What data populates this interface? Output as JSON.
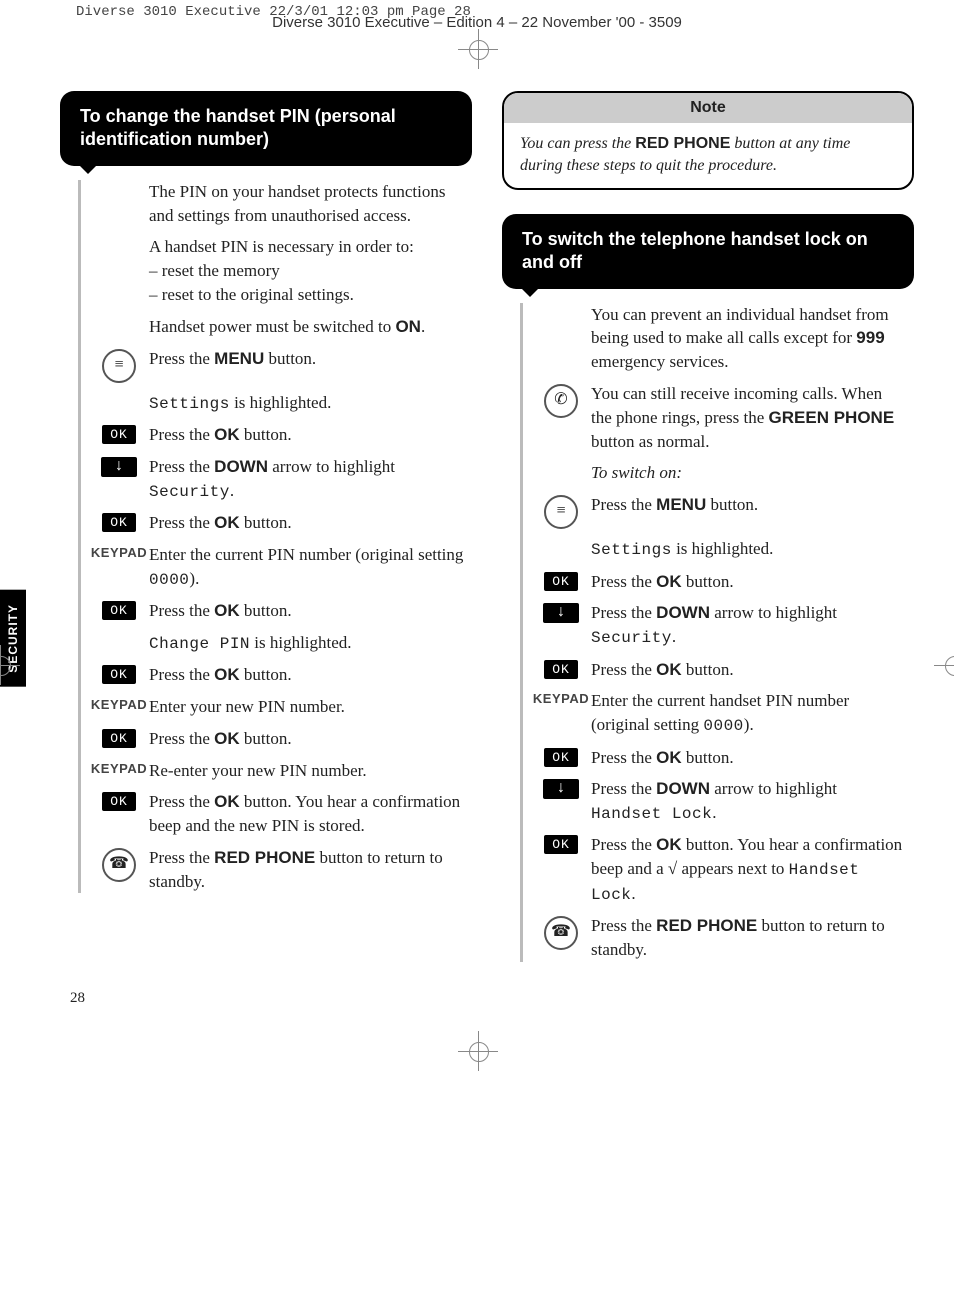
{
  "printHeader": "Diverse 3010 Executive  22/3/01  12:03 pm  Page 28",
  "docHeader": "Diverse 3010 Executive – Edition 4 – 22 November '00 - 3509",
  "sideTab": "SECURITY",
  "pageNumber": "28",
  "left": {
    "title": "To change the handset PIN (personal identification number)",
    "steps": [
      {
        "icon": "none",
        "html": "The PIN on your handset protects functions and settings from unauthorised access."
      },
      {
        "icon": "none",
        "html": "A handset PIN is necessary in order to:<br>– reset the memory<br>– reset to the original settings."
      },
      {
        "icon": "none",
        "html": "Handset power must be switched to <span class='bold'>ON</span>."
      },
      {
        "icon": "menu",
        "html": "Press the <span class='bold'>MENU</span> button."
      },
      {
        "icon": "none",
        "html": "<span class='mono'>Settings</span> is highlighted."
      },
      {
        "icon": "ok",
        "html": "Press the <span class='bold'>OK</span> button."
      },
      {
        "icon": "down",
        "html": "Press the <span class='bold'>DOWN</span> arrow to highlight <span class='mono'>Security</span>."
      },
      {
        "icon": "ok",
        "html": "Press the <span class='bold'>OK</span> button."
      },
      {
        "icon": "keypad",
        "html": "Enter the current PIN number (original setting <span class='mono'>0000</span>)."
      },
      {
        "icon": "ok",
        "html": "Press the <span class='bold'>OK</span> button."
      },
      {
        "icon": "none",
        "html": "<span class='mono'>Change PIN</span> is highlighted."
      },
      {
        "icon": "ok",
        "html": "Press the <span class='bold'>OK</span> button."
      },
      {
        "icon": "keypad",
        "html": "Enter your new PIN number."
      },
      {
        "icon": "ok",
        "html": "Press the <span class='bold'>OK</span> button."
      },
      {
        "icon": "keypad",
        "html": "Re-enter your new PIN number."
      },
      {
        "icon": "ok",
        "html": "Press the <span class='bold'>OK</span> button. You hear a confirmation beep and the new PIN is stored."
      },
      {
        "icon": "redphone",
        "html": "Press the <span class='bold'>RED PHONE</span> button to return to standby."
      }
    ]
  },
  "note": {
    "title": "Note",
    "body": "You can press the <span class='bold' style='font-style:normal'>RED PHONE</span> button at any time during these steps to quit the procedure."
  },
  "right": {
    "title": "To switch the telephone handset lock on and off",
    "steps": [
      {
        "icon": "none",
        "html": "You can prevent an individual handset from being used to make all calls except for <span class='bold'>999</span> emergency services."
      },
      {
        "icon": "greenphone",
        "html": "You can still receive incoming calls. When the phone rings, press the <span class='bold'>GREEN PHONE</span> button as normal."
      },
      {
        "icon": "none",
        "html": "<span class='italic'>To switch on:</span>"
      },
      {
        "icon": "menu",
        "html": "Press the <span class='bold'>MENU</span> button."
      },
      {
        "icon": "none",
        "html": "<span class='mono'>Settings</span> is highlighted."
      },
      {
        "icon": "ok",
        "html": "Press the <span class='bold'>OK</span> button."
      },
      {
        "icon": "down",
        "html": "Press the <span class='bold'>DOWN</span> arrow to highlight <span class='mono'>Security</span>."
      },
      {
        "icon": "ok",
        "html": "Press the <span class='bold'>OK</span> button."
      },
      {
        "icon": "keypad",
        "html": "Enter the current handset PIN number (original setting <span class='mono'>0000</span>)."
      },
      {
        "icon": "ok",
        "html": "Press the <span class='bold'>OK</span> button."
      },
      {
        "icon": "down",
        "html": "Press the <span class='bold'>DOWN</span> arrow to highlight <span class='mono'>Handset Lock</span>."
      },
      {
        "icon": "ok",
        "html": "Press the <span class='bold'>OK</span> button. You hear a confirmation beep and a √ appears next to <span class='mono'>Handset Lock</span>."
      },
      {
        "icon": "redphone",
        "html": "Press the <span class='bold'>RED PHONE</span> button to return to standby."
      }
    ]
  }
}
